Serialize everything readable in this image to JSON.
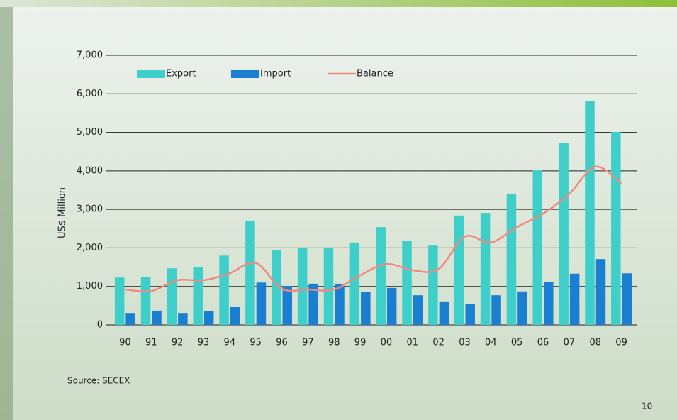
{
  "chart_data": {
    "type": "bar",
    "y_label": "US$ Million",
    "source": "Source: SECEX",
    "page_number": "10",
    "categories": [
      "90",
      "91",
      "92",
      "93",
      "94",
      "95",
      "96",
      "97",
      "98",
      "99",
      "00",
      "01",
      "02",
      "03",
      "04",
      "05",
      "06",
      "07",
      "08",
      "09"
    ],
    "series": [
      {
        "name": "Export",
        "color": "#3ecfca",
        "values": [
          1230,
          1250,
          1470,
          1510,
          1800,
          2710,
          1950,
          1990,
          1990,
          2140,
          2540,
          2190,
          2060,
          2840,
          2910,
          3410,
          4010,
          4730,
          5820,
          5010
        ]
      },
      {
        "name": "Import",
        "color": "#1a7fd0",
        "values": [
          310,
          370,
          310,
          350,
          460,
          1100,
          1010,
          1070,
          1070,
          850,
          960,
          770,
          610,
          550,
          770,
          870,
          1120,
          1330,
          1710,
          1340
        ]
      },
      {
        "name": "Balance",
        "type": "line",
        "color": "#f08a80",
        "values": [
          920,
          880,
          1160,
          1160,
          1340,
          1610,
          940,
          920,
          920,
          1290,
          1580,
          1420,
          1450,
          2290,
          2140,
          2540,
          2890,
          3400,
          4110,
          3670
        ]
      }
    ],
    "ylim": [
      0,
      7000
    ],
    "yticks": [
      0,
      {
        "value": 1000,
        "label": "1,000"
      },
      {
        "value": 2000,
        "label": "2,000"
      },
      {
        "value": 3000,
        "label": "3,000"
      },
      {
        "value": 4000,
        "label": "4,000"
      },
      {
        "value": 5000,
        "label": "5,000"
      },
      {
        "value": 6000,
        "label": "6,000"
      },
      {
        "value": 7000,
        "label": "7,000"
      }
    ],
    "grid": true
  }
}
